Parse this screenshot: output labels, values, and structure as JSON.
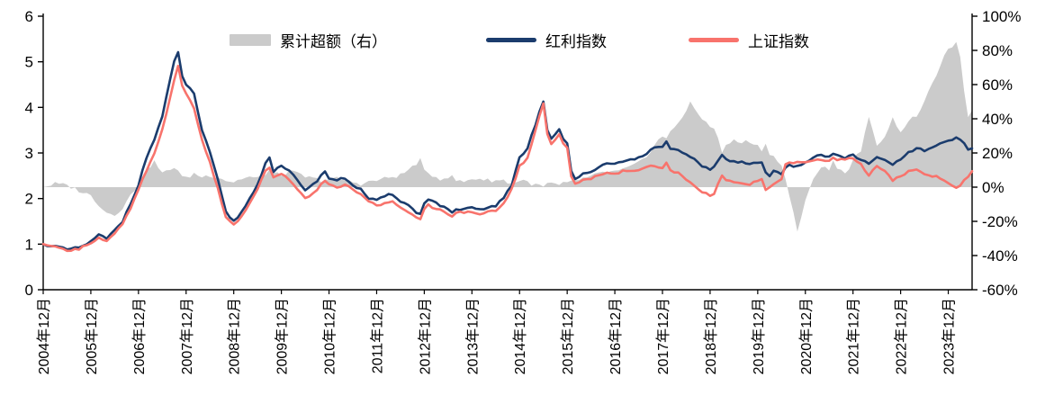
{
  "legend": {
    "excess": "累计超额（右）",
    "dividend": "红利指数",
    "sse": "上证指数"
  },
  "colors": {
    "excess": "#cbcbcb",
    "dividend": "#1b3c6d",
    "sse": "#f8736c",
    "axis": "#000000",
    "background": "#ffffff"
  },
  "chart_data": {
    "type": "line",
    "title": "",
    "x_unit": "months since 2004-12",
    "legend_position": "top",
    "grid": false,
    "x_tick_labels": [
      "2004年12月",
      "2005年12月",
      "2006年12月",
      "2007年12月",
      "2008年12月",
      "2009年12月",
      "2010年12月",
      "2011年12月",
      "2012年12月",
      "2013年12月",
      "2014年12月",
      "2015年12月",
      "2016年12月",
      "2017年12月",
      "2018年12月",
      "2019年12月",
      "2020年12月",
      "2021年12月",
      "2022年12月",
      "2023年12月"
    ],
    "left_axis": {
      "min": 0,
      "max": 6,
      "ticks": [
        0,
        1,
        2,
        3,
        4,
        5,
        6
      ]
    },
    "right_axis": {
      "min": -0.6,
      "max": 1.0,
      "ticks": [
        100,
        80,
        60,
        40,
        20,
        0,
        -20,
        -40,
        -60
      ]
    },
    "x": [
      0,
      3,
      6,
      9,
      12,
      14,
      16,
      18,
      20,
      22,
      24,
      26,
      28,
      30,
      32,
      33,
      34,
      35,
      36,
      38,
      40,
      42,
      44,
      46,
      48,
      50,
      52,
      54,
      56,
      57,
      58,
      60,
      62,
      64,
      66,
      68,
      70,
      71,
      72,
      74,
      76,
      78,
      80,
      82,
      84,
      86,
      88,
      90,
      92,
      94,
      95,
      96,
      97,
      98,
      100,
      102,
      103,
      104,
      106,
      108,
      110,
      112,
      114,
      116,
      118,
      120,
      121,
      122,
      123,
      124,
      125,
      126,
      127,
      128,
      130,
      131,
      132,
      133,
      134,
      136,
      138,
      140,
      142,
      144,
      146,
      148,
      150,
      152,
      154,
      156,
      157,
      158,
      160,
      162,
      163,
      164,
      166,
      168,
      169,
      170,
      171,
      172,
      174,
      176,
      178,
      180,
      181,
      182,
      183,
      184,
      186,
      187,
      188,
      189,
      190,
      191,
      192,
      193,
      194,
      196,
      198,
      199,
      200,
      202,
      204,
      206,
      208,
      210,
      212,
      214,
      216,
      218,
      220,
      222,
      224,
      226,
      228,
      230,
      231,
      232,
      233,
      234
    ],
    "series": [
      {
        "name": "累计超额（右）",
        "type": "area",
        "axis": "right",
        "color": "#cbcbcb",
        "values": [
          0.0,
          0.02,
          0.01,
          -0.02,
          -0.05,
          -0.1,
          -0.15,
          -0.16,
          -0.12,
          -0.05,
          0.02,
          0.1,
          0.15,
          0.08,
          0.1,
          0.12,
          0.1,
          0.06,
          0.05,
          0.08,
          0.06,
          0.07,
          0.06,
          0.04,
          0.03,
          0.05,
          0.06,
          0.05,
          0.08,
          0.1,
          0.08,
          0.07,
          0.09,
          0.08,
          0.06,
          0.05,
          0.04,
          0.05,
          0.04,
          0.05,
          0.04,
          0.03,
          0.02,
          0.03,
          0.04,
          0.05,
          0.06,
          0.07,
          0.1,
          0.14,
          0.16,
          0.09,
          0.08,
          0.07,
          0.05,
          0.06,
          0.06,
          0.04,
          0.03,
          0.05,
          0.05,
          0.04,
          0.04,
          0.04,
          0.02,
          0.04,
          0.04,
          0.03,
          0.02,
          0.01,
          0.01,
          0.0,
          0.02,
          0.02,
          0.01,
          0.02,
          0.02,
          0.03,
          0.04,
          0.05,
          0.06,
          0.08,
          0.09,
          0.09,
          0.1,
          0.12,
          0.14,
          0.18,
          0.25,
          0.3,
          0.28,
          0.32,
          0.38,
          0.45,
          0.5,
          0.45,
          0.4,
          0.36,
          0.35,
          0.28,
          0.2,
          0.25,
          0.27,
          0.26,
          0.27,
          0.24,
          0.22,
          0.25,
          0.2,
          0.18,
          0.12,
          0.05,
          -0.05,
          -0.15,
          -0.27,
          -0.18,
          -0.08,
          0.0,
          0.05,
          0.12,
          0.1,
          0.15,
          0.12,
          0.08,
          0.15,
          0.22,
          0.4,
          0.25,
          0.3,
          0.4,
          0.33,
          0.38,
          0.42,
          0.5,
          0.6,
          0.72,
          0.8,
          0.85,
          0.75,
          0.55,
          0.4,
          0.45
        ]
      },
      {
        "name": "红利指数",
        "type": "line",
        "axis": "left",
        "color": "#1b3c6d",
        "values": [
          1.0,
          0.95,
          0.88,
          0.92,
          1.05,
          1.2,
          1.12,
          1.3,
          1.5,
          1.9,
          2.3,
          2.9,
          3.3,
          3.8,
          4.6,
          5.0,
          5.2,
          4.7,
          4.5,
          4.3,
          3.5,
          3.0,
          2.4,
          1.7,
          1.5,
          1.7,
          2.0,
          2.3,
          2.8,
          2.9,
          2.6,
          2.7,
          2.6,
          2.4,
          2.2,
          2.3,
          2.5,
          2.6,
          2.45,
          2.4,
          2.45,
          2.3,
          2.2,
          2.0,
          1.95,
          2.05,
          2.1,
          1.95,
          1.85,
          1.7,
          1.65,
          1.9,
          2.0,
          1.95,
          1.85,
          1.75,
          1.7,
          1.75,
          1.75,
          1.8,
          1.75,
          1.8,
          1.85,
          2.0,
          2.3,
          2.9,
          3.0,
          3.1,
          3.4,
          3.6,
          3.9,
          4.15,
          3.5,
          3.3,
          3.5,
          3.3,
          3.2,
          2.6,
          2.45,
          2.55,
          2.6,
          2.7,
          2.75,
          2.75,
          2.8,
          2.85,
          2.9,
          3.0,
          3.1,
          3.15,
          3.25,
          3.1,
          3.05,
          2.95,
          2.9,
          2.85,
          2.7,
          2.65,
          2.7,
          2.85,
          2.95,
          2.85,
          2.8,
          2.8,
          2.75,
          2.8,
          2.8,
          2.55,
          2.5,
          2.6,
          2.55,
          2.7,
          2.75,
          2.72,
          2.72,
          2.75,
          2.78,
          2.85,
          2.9,
          2.95,
          2.9,
          3.0,
          2.95,
          2.9,
          2.95,
          2.85,
          2.75,
          2.9,
          2.85,
          2.75,
          2.85,
          3.0,
          3.1,
          3.05,
          3.1,
          3.2,
          3.25,
          3.35,
          3.3,
          3.2,
          3.05,
          3.1
        ]
      },
      {
        "name": "上证指数",
        "type": "line",
        "axis": "left",
        "color": "#f8736c",
        "values": [
          1.0,
          0.93,
          0.86,
          0.9,
          1.0,
          1.15,
          1.08,
          1.25,
          1.45,
          1.8,
          2.2,
          2.6,
          3.0,
          3.5,
          4.2,
          4.6,
          4.9,
          4.5,
          4.3,
          4.0,
          3.3,
          2.8,
          2.2,
          1.6,
          1.45,
          1.6,
          1.9,
          2.2,
          2.6,
          2.7,
          2.45,
          2.55,
          2.4,
          2.2,
          2.0,
          2.1,
          2.3,
          2.4,
          2.3,
          2.25,
          2.3,
          2.2,
          2.1,
          1.95,
          1.85,
          1.9,
          1.95,
          1.8,
          1.7,
          1.6,
          1.55,
          1.75,
          1.85,
          1.8,
          1.75,
          1.65,
          1.6,
          1.7,
          1.7,
          1.7,
          1.65,
          1.7,
          1.75,
          1.9,
          2.2,
          2.7,
          2.8,
          2.9,
          3.2,
          3.5,
          3.8,
          4.1,
          3.4,
          3.2,
          3.4,
          3.2,
          3.1,
          2.5,
          2.35,
          2.4,
          2.45,
          2.5,
          2.55,
          2.55,
          2.6,
          2.6,
          2.6,
          2.7,
          2.7,
          2.65,
          2.8,
          2.6,
          2.55,
          2.4,
          2.35,
          2.3,
          2.15,
          2.05,
          2.1,
          2.3,
          2.5,
          2.4,
          2.35,
          2.35,
          2.3,
          2.4,
          2.42,
          2.2,
          2.25,
          2.3,
          2.45,
          2.75,
          2.8,
          2.78,
          2.78,
          2.78,
          2.8,
          2.8,
          2.85,
          2.85,
          2.85,
          2.9,
          2.85,
          2.88,
          2.9,
          2.75,
          2.5,
          2.7,
          2.6,
          2.4,
          2.5,
          2.6,
          2.65,
          2.55,
          2.5,
          2.45,
          2.35,
          2.25,
          2.3,
          2.4,
          2.5,
          2.6
        ]
      }
    ]
  }
}
